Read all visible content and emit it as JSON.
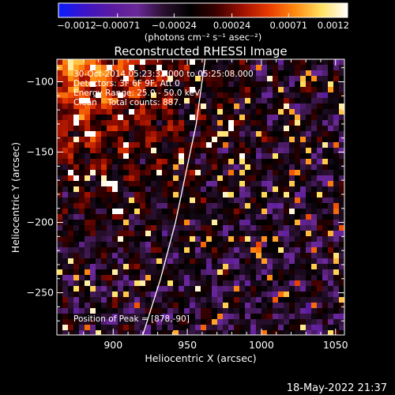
{
  "chart_data": {
    "type": "heatmap",
    "title": "Reconstructed RHESSI Image",
    "xlabel": "Heliocentric X (arcsec)",
    "ylabel": "Heliocentric Y (arcsec)",
    "xlim": [
      862,
      1056
    ],
    "ylim": [
      -280,
      -84
    ],
    "x_ticks": [
      {
        "value": 900,
        "label": "900"
      },
      {
        "value": 950,
        "label": "950"
      },
      {
        "value": 1000,
        "label": "1000"
      },
      {
        "value": 1050,
        "label": "1050"
      }
    ],
    "y_ticks": [
      {
        "value": -100,
        "label": "−100"
      },
      {
        "value": -150,
        "label": "−150"
      },
      {
        "value": -200,
        "label": "−200"
      },
      {
        "value": -250,
        "label": "−250"
      }
    ],
    "colorbar": {
      "range": [
        -0.0012,
        0.0012
      ],
      "tick_values": [
        -0.0012,
        -0.00071,
        -0.00024,
        0.00024,
        0.00071,
        0.0012
      ],
      "tick_labels": [
        "−0.0012",
        "−0.00071",
        "−0.00024",
        "0.00024",
        "0.00071",
        "0.0012"
      ],
      "unit_label": "(photons cm⁻² s⁻¹ asec⁻²)",
      "colormap": "rhessi",
      "stops": [
        "#0a1cff",
        "#3d14c8",
        "#5a1aa0",
        "#6a2898",
        "#2a1030",
        "#000000",
        "#3a0000",
        "#a01000",
        "#e83a00",
        "#ff8a10",
        "#ffe060",
        "#ffffff"
      ]
    },
    "limb_curve": [
      [
        920,
        -280
      ],
      [
        932,
        -240
      ],
      [
        942,
        -200
      ],
      [
        950,
        -160
      ],
      [
        956,
        -130
      ],
      [
        962,
        -84
      ]
    ],
    "annotations": {
      "time": "30-Oct-2014 05:23:32.000 to 05:25:08.000",
      "detectors": "Detectors: 3F 6F 9F, Att 0",
      "energy": "Energy Range: 25.0 - 50.0 keV",
      "method": "Clean    Total counts: 887.",
      "peak": "Position of Peak = [878,-90]"
    },
    "peak": {
      "x": 878,
      "y": -90
    },
    "grid": false,
    "legend": "none"
  },
  "footer": {
    "timestamp": "18-May-2022 21:37"
  }
}
